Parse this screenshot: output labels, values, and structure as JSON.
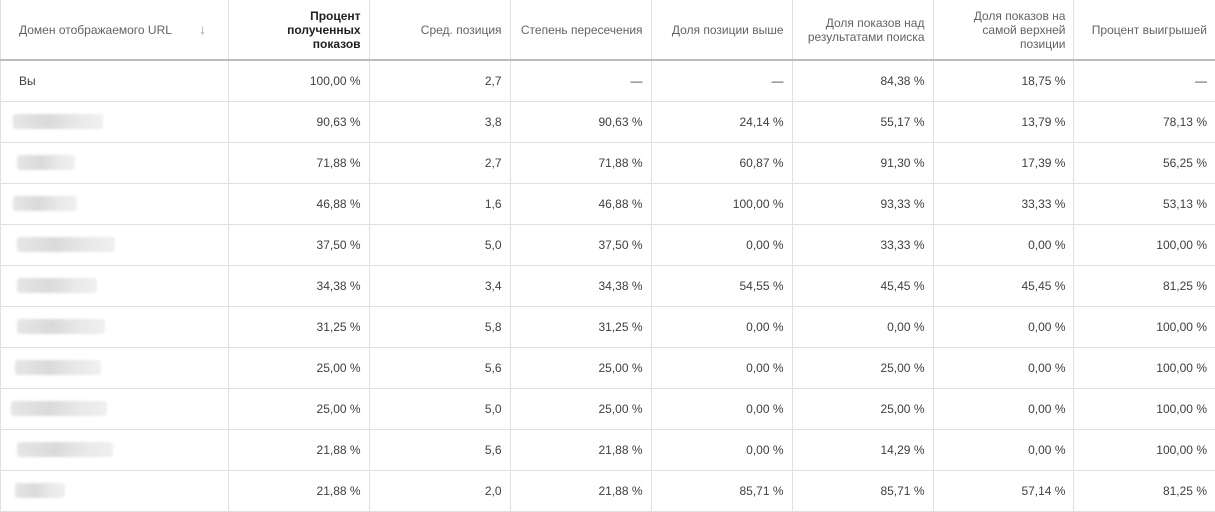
{
  "columns": [
    {
      "label": "Домен отображаемого URL"
    },
    {
      "label": "Процент полученных показов"
    },
    {
      "label": "Сред. позиция"
    },
    {
      "label": "Степень пересечения"
    },
    {
      "label": "Доля позиции выше"
    },
    {
      "label": "Доля показов над результатами поиска"
    },
    {
      "label": "Доля показов на самой верхней позиции"
    },
    {
      "label": "Процент выигрышей"
    }
  ],
  "sort_icon": "arrow-down-icon",
  "rows": [
    {
      "domain": "Вы",
      "cells": [
        "100,00 %",
        "2,7",
        "—",
        "—",
        "84,38 %",
        "18,75 %",
        "—"
      ]
    },
    {
      "domain": "",
      "cells": [
        "90,63 %",
        "3,8",
        "90,63 %",
        "24,14 %",
        "55,17 %",
        "13,79 %",
        "78,13 %"
      ]
    },
    {
      "domain": "",
      "cells": [
        "71,88 %",
        "2,7",
        "71,88 %",
        "60,87 %",
        "91,30 %",
        "17,39 %",
        "56,25 %"
      ]
    },
    {
      "domain": "",
      "cells": [
        "46,88 %",
        "1,6",
        "46,88 %",
        "100,00 %",
        "93,33 %",
        "33,33 %",
        "53,13 %"
      ]
    },
    {
      "domain": "",
      "cells": [
        "37,50 %",
        "5,0",
        "37,50 %",
        "0,00 %",
        "33,33 %",
        "0,00 %",
        "100,00 %"
      ]
    },
    {
      "domain": "",
      "cells": [
        "34,38 %",
        "3,4",
        "34,38 %",
        "54,55 %",
        "45,45 %",
        "45,45 %",
        "81,25 %"
      ]
    },
    {
      "domain": "",
      "cells": [
        "31,25 %",
        "5,8",
        "31,25 %",
        "0,00 %",
        "0,00 %",
        "0,00 %",
        "100,00 %"
      ]
    },
    {
      "domain": "",
      "cells": [
        "25,00 %",
        "5,6",
        "25,00 %",
        "0,00 %",
        "25,00 %",
        "0,00 %",
        "100,00 %"
      ]
    },
    {
      "domain": "",
      "cells": [
        "25,00 %",
        "5,0",
        "25,00 %",
        "0,00 %",
        "25,00 %",
        "0,00 %",
        "100,00 %"
      ]
    },
    {
      "domain": "",
      "cells": [
        "21,88 %",
        "5,6",
        "21,88 %",
        "0,00 %",
        "14,29 %",
        "0,00 %",
        "100,00 %"
      ]
    },
    {
      "domain": "",
      "cells": [
        "21,88 %",
        "2,0",
        "21,88 %",
        "85,71 %",
        "85,71 %",
        "57,14 %",
        "81,25 %"
      ]
    }
  ]
}
